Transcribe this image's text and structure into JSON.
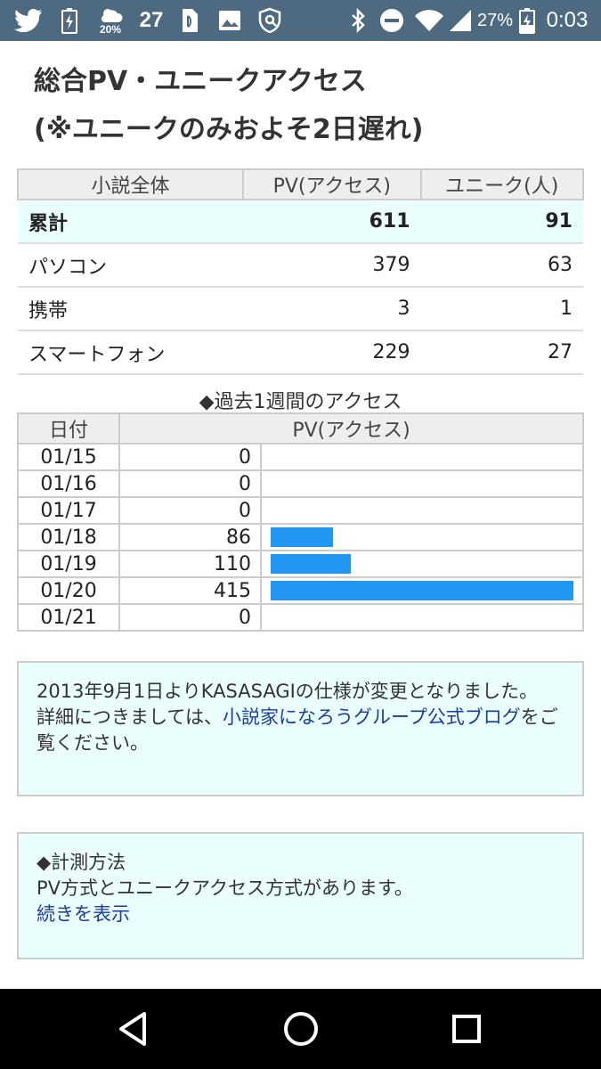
{
  "status_bar": {
    "icons": [
      "twitter-icon",
      "battery-saver-icon",
      "weather-icon",
      "nfc-icon",
      "image-icon",
      "shield-icon",
      "bluetooth-icon",
      "do-not-disturb-icon",
      "wifi-icon",
      "signal-icon",
      "battery-icon"
    ],
    "weather_percent": "20%",
    "temperature": "27",
    "battery_percent": "27%",
    "time": "0:03"
  },
  "page": {
    "title_line1": "総合PV・ユニークアクセス",
    "title_line2": "(※ユニークのみおよそ2日遅れ)"
  },
  "summary": {
    "headers": [
      "小説全体",
      "PV(アクセス)",
      "ユニーク(人)"
    ],
    "rows": [
      {
        "label": "累計",
        "pv": "611",
        "unique": "91"
      },
      {
        "label": "パソコン",
        "pv": "379",
        "unique": "63"
      },
      {
        "label": "携帯",
        "pv": "3",
        "unique": "1"
      },
      {
        "label": "スマートフォン",
        "pv": "229",
        "unique": "27"
      }
    ]
  },
  "weekly": {
    "title": "◆過去1週間のアクセス",
    "headers": [
      "日付",
      "PV(アクセス)"
    ],
    "max_pv": 415,
    "rows": [
      {
        "date": "01/15",
        "pv": "0"
      },
      {
        "date": "01/16",
        "pv": "0"
      },
      {
        "date": "01/17",
        "pv": "0"
      },
      {
        "date": "01/18",
        "pv": "86"
      },
      {
        "date": "01/19",
        "pv": "110"
      },
      {
        "date": "01/20",
        "pv": "415"
      },
      {
        "date": "01/21",
        "pv": "0"
      }
    ],
    "bar_color": "#2196f3"
  },
  "notice": {
    "line1": "2013年9月1日よりKASASAGIの仕様が変更となりました。",
    "line2_prefix": "詳細につきましては、",
    "link": "小説家になろうグループ公式ブログ",
    "line2_suffix": "をご覧ください。"
  },
  "method": {
    "title": "◆計測方法",
    "text": "PV方式とユニークアクセス方式があります。",
    "more_link": "続きを表示"
  },
  "nav": {
    "icons": [
      "back-icon",
      "home-icon",
      "recents-icon"
    ]
  }
}
